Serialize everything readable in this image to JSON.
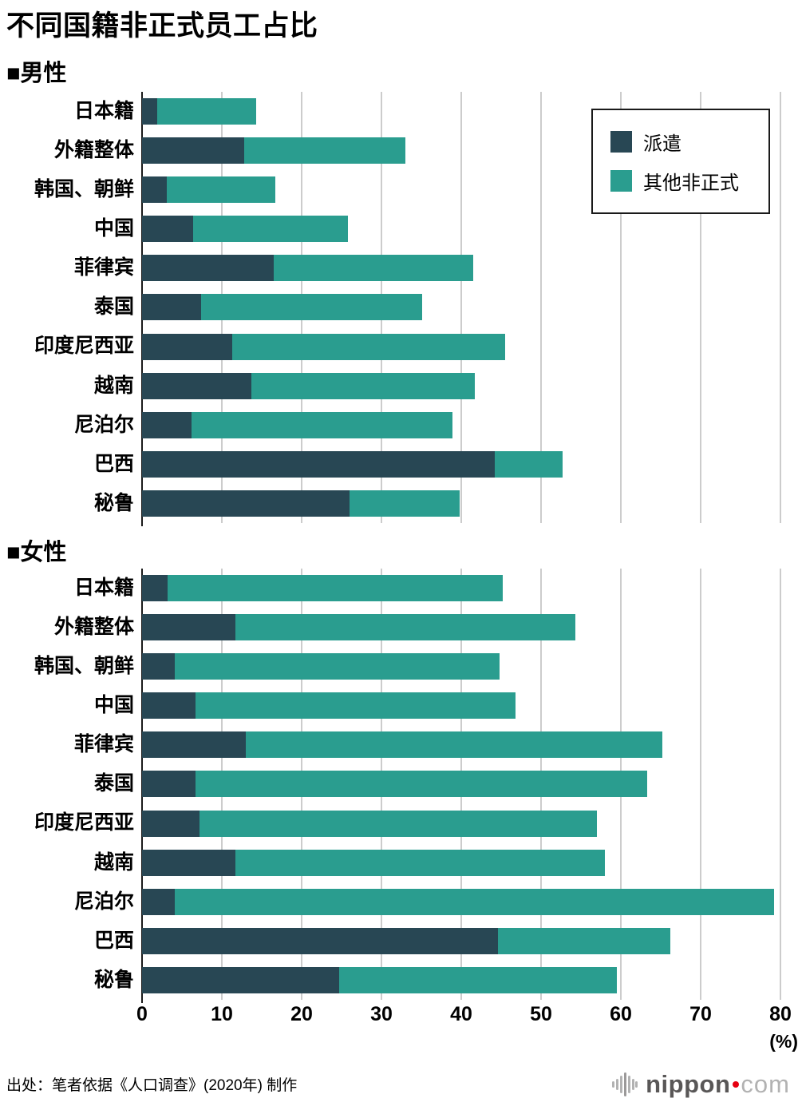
{
  "title": "不同国籍非正式员工占比",
  "colors": {
    "dispatch": "#284754",
    "other": "#2a9d8f",
    "grid": "#cccccc",
    "axis": "#1a1a1a",
    "legend_border": "#1a1a1a",
    "logo_gray": "#595757",
    "logo_light": "#b2b2b2",
    "logo_red": "#e60012"
  },
  "legend": {
    "items": [
      {
        "label": "派遣",
        "color_key": "dispatch"
      },
      {
        "label": "其他非正式",
        "color_key": "other"
      }
    ]
  },
  "axis": {
    "ticks": [
      0,
      10,
      20,
      30,
      40,
      50,
      60,
      70,
      80
    ],
    "unit_label": "(%)",
    "max": 80
  },
  "chart_data": [
    {
      "type": "bar",
      "stacked": true,
      "orientation": "horizontal",
      "section_label": "■男性",
      "gender": "男性",
      "categories": [
        "日本籍",
        "外籍整体",
        "韩国、朝鲜",
        "中国",
        "菲律宾",
        "泰国",
        "印度尼西亚",
        "越南",
        "尼泊尔",
        "巴西",
        "秘鲁"
      ],
      "series": [
        {
          "name": "派遣",
          "values": [
            1.9,
            12.8,
            3.1,
            6.4,
            16.5,
            7.4,
            11.3,
            13.7,
            6.2,
            44.2,
            26.0
          ]
        },
        {
          "name": "其他非正式",
          "values": [
            12.4,
            20.2,
            13.6,
            19.4,
            25.0,
            27.7,
            34.2,
            28.0,
            32.7,
            8.5,
            13.8
          ]
        }
      ],
      "totals": [
        14.3,
        33.0,
        16.7,
        25.8,
        41.5,
        35.1,
        45.5,
        41.7,
        38.9,
        52.7,
        39.8
      ],
      "xlim": [
        0,
        80
      ],
      "grid": true,
      "legend_position": "top-right"
    },
    {
      "type": "bar",
      "stacked": true,
      "orientation": "horizontal",
      "section_label": "■女性",
      "gender": "女性",
      "categories": [
        "日本籍",
        "外籍整体",
        "韩国、朝鲜",
        "中国",
        "菲律宾",
        "泰国",
        "印度尼西亚",
        "越南",
        "尼泊尔",
        "巴西",
        "秘鲁"
      ],
      "series": [
        {
          "name": "派遣",
          "values": [
            3.2,
            11.7,
            4.1,
            6.7,
            13.0,
            6.7,
            7.2,
            11.7,
            4.1,
            44.6,
            24.7
          ]
        },
        {
          "name": "其他非正式",
          "values": [
            42.0,
            42.6,
            40.7,
            40.1,
            52.2,
            56.6,
            49.8,
            46.3,
            75.1,
            21.6,
            34.8
          ]
        }
      ],
      "totals": [
        45.2,
        54.3,
        44.8,
        46.8,
        65.2,
        63.3,
        57.0,
        58.0,
        79.2,
        66.2,
        59.5
      ],
      "xlim": [
        0,
        80
      ],
      "grid": true,
      "legend_position": "none"
    }
  ],
  "footer": {
    "source": "出处：笔者依据《人口调查》(2020年) 制作",
    "logo": {
      "text_main": "nippon",
      "text_suffix": "com"
    }
  }
}
